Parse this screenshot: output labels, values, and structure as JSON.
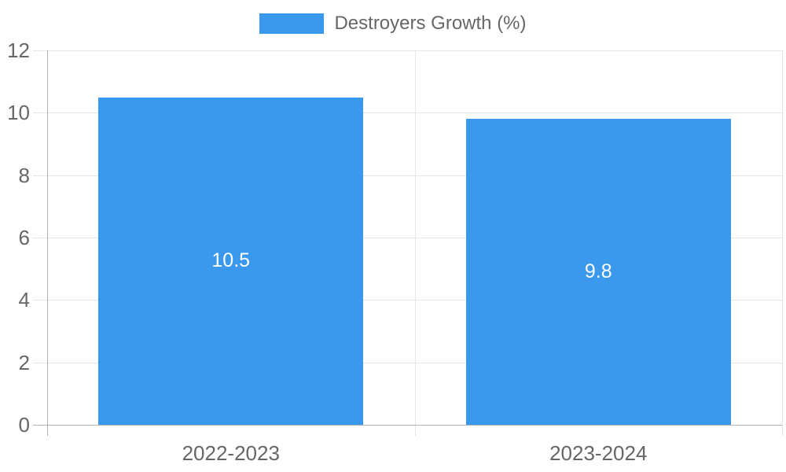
{
  "chart_data": {
    "type": "bar",
    "title": "",
    "legend": "Destroyers Growth (%)",
    "legend_position": "top",
    "categories": [
      "2022-2023",
      "2023-2024"
    ],
    "series": [
      {
        "name": "Destroyers Growth (%)",
        "values": [
          10.5,
          9.8
        ]
      }
    ],
    "value_labels": [
      "10.5",
      "9.8"
    ],
    "xlabel": "",
    "ylabel": "",
    "y_ticks": [
      0,
      2,
      4,
      6,
      8,
      10,
      12
    ],
    "ylim": [
      0,
      12
    ],
    "grid": true,
    "colors": {
      "bar": "#3A99EC",
      "tick_label": "#666666",
      "grid_line": "#E6E6E6",
      "axis_line": "#B3B3B3",
      "value_label": "#FFFFFF",
      "background": "#FFFFFF"
    }
  }
}
